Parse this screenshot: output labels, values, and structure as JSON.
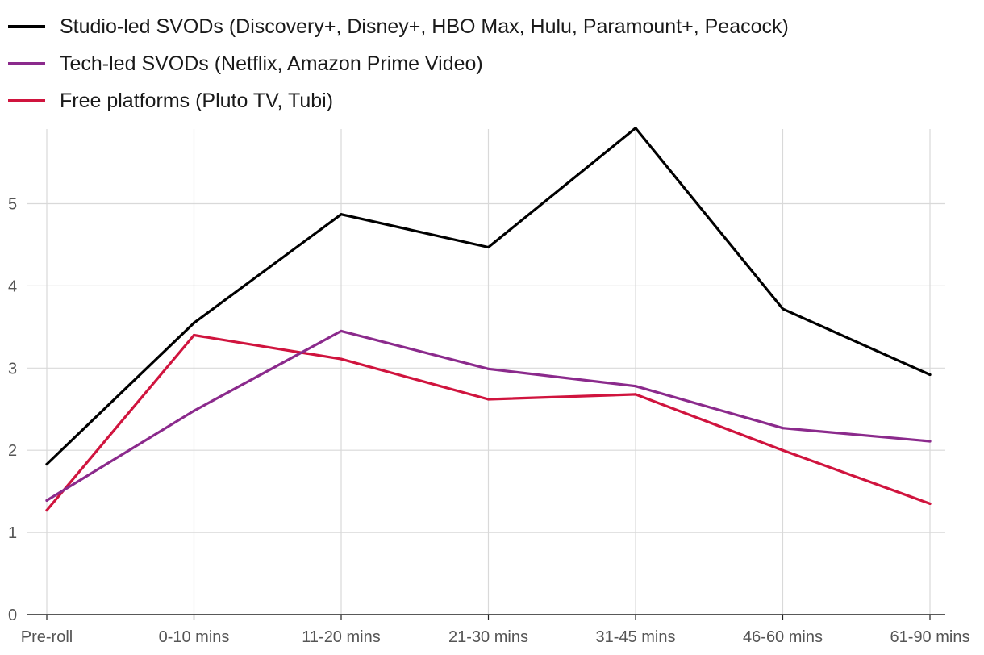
{
  "chart_data": {
    "type": "line",
    "categories": [
      "Pre-roll",
      "0-10 mins",
      "11-20 mins",
      "21-30 mins",
      "31-45 mins",
      "46-60 mins",
      "61-90 mins"
    ],
    "series": [
      {
        "name": "Studio-led SVODs (Discovery+, Disney+, HBO Max, Hulu, Paramount+, Peacock)",
        "color": "#000000",
        "values": [
          1.83,
          3.55,
          4.87,
          4.47,
          5.92,
          3.72,
          2.92
        ]
      },
      {
        "name": "Tech-led SVODs (Netflix, Amazon Prime Video)",
        "color": "#8b2a8c",
        "values": [
          1.39,
          2.48,
          3.45,
          2.99,
          2.78,
          2.27,
          2.11
        ]
      },
      {
        "name": "Free platforms (Pluto TV, Tubi)",
        "color": "#d0143e",
        "values": [
          1.27,
          3.4,
          3.11,
          2.62,
          2.68,
          2.0,
          1.35
        ]
      }
    ],
    "yticks": [
      0,
      1,
      2,
      3,
      4,
      5
    ],
    "ylim": [
      0,
      5.9
    ],
    "grid": true,
    "legend": "top-left"
  }
}
